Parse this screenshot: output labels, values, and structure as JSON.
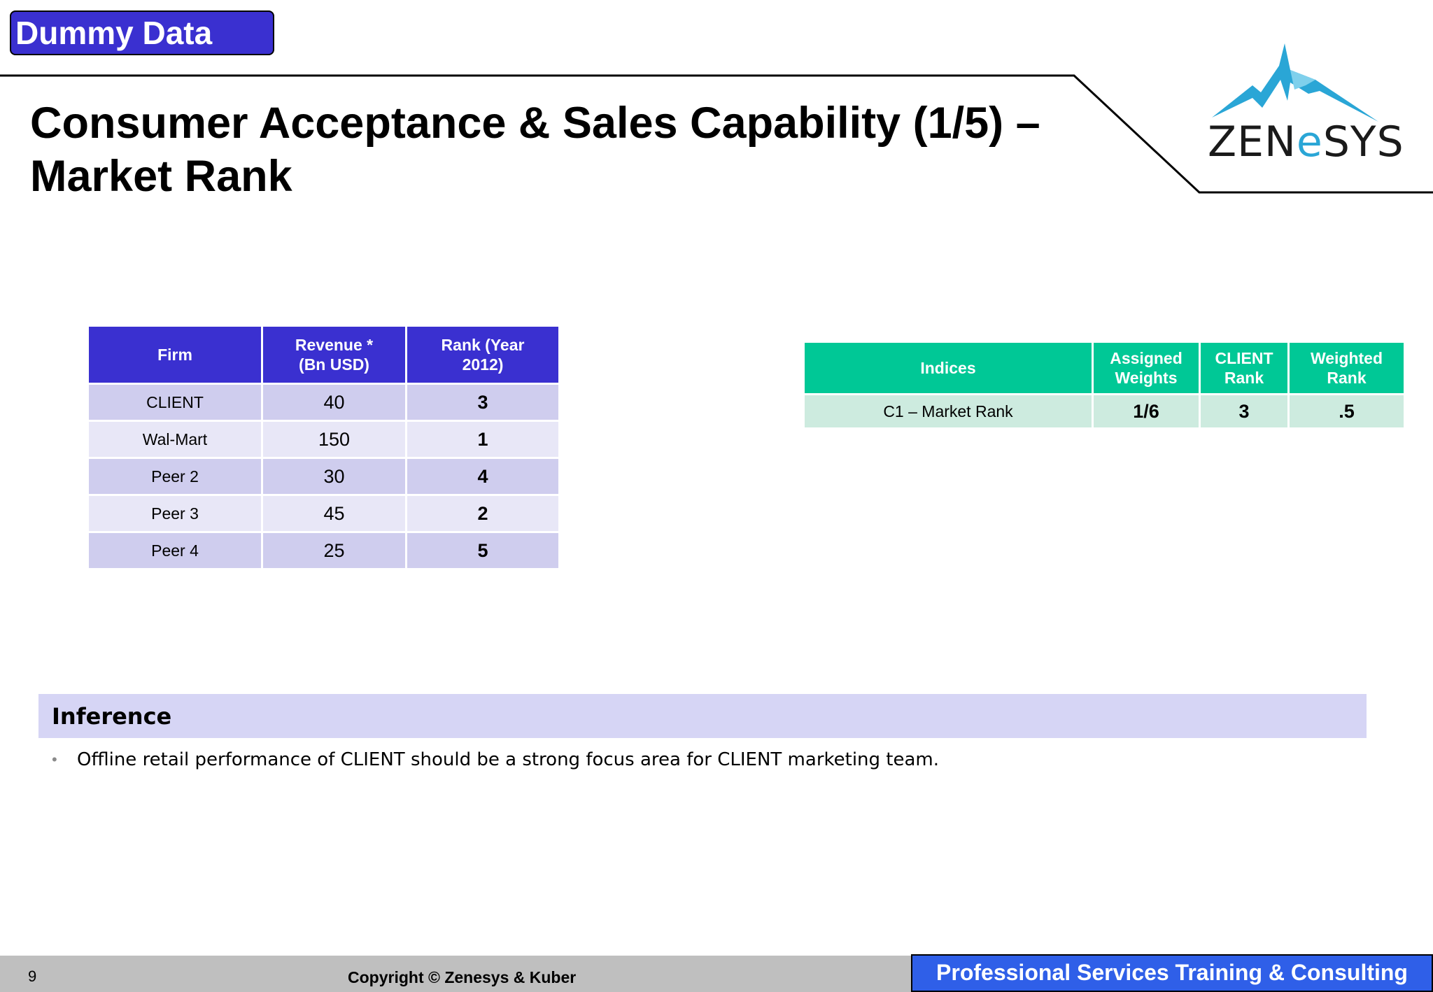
{
  "badge": {
    "label": "Dummy Data"
  },
  "slide": {
    "title_line1": "Consumer Acceptance & Sales Capability (1/5) –",
    "title_line2": "Market Rank"
  },
  "logo": {
    "text_before": "ZEN",
    "text_accent": "e",
    "text_after": "SYS"
  },
  "firm_table": {
    "headers": [
      "Firm",
      "Revenue * (Bn USD)",
      "Rank (Year 2012)"
    ],
    "rows": [
      {
        "firm": "CLIENT",
        "revenue": "40",
        "rank": "3"
      },
      {
        "firm": "Wal-Mart",
        "revenue": "150",
        "rank": "1"
      },
      {
        "firm": "Peer 2",
        "revenue": "30",
        "rank": "4"
      },
      {
        "firm": "Peer 3",
        "revenue": "45",
        "rank": "2"
      },
      {
        "firm": "Peer 4",
        "revenue": "25",
        "rank": "5"
      }
    ]
  },
  "indices_table": {
    "headers": [
      "Indices",
      "Assigned Weights",
      "CLIENT Rank",
      "Weighted Rank"
    ],
    "rows": [
      {
        "index": "C1 – Market Rank",
        "weight": "1/6",
        "client_rank": "3",
        "weighted_rank": ".5"
      }
    ]
  },
  "inference": {
    "title": "Inference",
    "bullets": [
      "Offline retail performance of CLIENT should be a strong focus area for CLIENT marketing team."
    ]
  },
  "footer": {
    "page_number": "9",
    "copyright": "Copyright © Zenesys & Kuber",
    "tagline": "Professional Services Training & Consulting"
  },
  "colors": {
    "badge": "#3a30d0",
    "firm_header": "#3a30d0",
    "indices_header": "#00c896",
    "logo_accent": "#2aa6d6",
    "tagline": "#2f5fe8"
  },
  "icons": {
    "logo_mark": "mountain-icon"
  }
}
